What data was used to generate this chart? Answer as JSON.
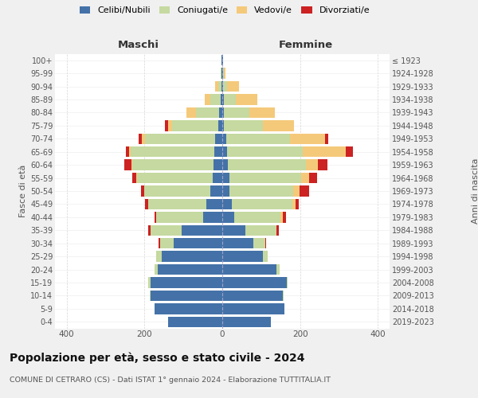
{
  "age_groups": [
    "0-4",
    "5-9",
    "10-14",
    "15-19",
    "20-24",
    "25-29",
    "30-34",
    "35-39",
    "40-44",
    "45-49",
    "50-54",
    "55-59",
    "60-64",
    "65-69",
    "70-74",
    "75-79",
    "80-84",
    "85-89",
    "90-94",
    "95-99",
    "100+"
  ],
  "birth_years": [
    "2019-2023",
    "2014-2018",
    "2009-2013",
    "2004-2008",
    "1999-2003",
    "1994-1998",
    "1989-1993",
    "1984-1988",
    "1979-1983",
    "1974-1978",
    "1969-1973",
    "1964-1968",
    "1959-1963",
    "1954-1958",
    "1949-1953",
    "1944-1948",
    "1939-1943",
    "1934-1938",
    "1929-1933",
    "1924-1928",
    "≤ 1923"
  ],
  "maschi": {
    "celibi": [
      140,
      175,
      185,
      185,
      165,
      155,
      125,
      105,
      50,
      40,
      30,
      25,
      22,
      20,
      18,
      10,
      8,
      5,
      3,
      2,
      2
    ],
    "coniugati": [
      0,
      0,
      2,
      5,
      10,
      15,
      35,
      80,
      120,
      150,
      170,
      195,
      210,
      215,
      180,
      120,
      60,
      25,
      8,
      3,
      1
    ],
    "vedovi": [
      0,
      0,
      0,
      0,
      0,
      0,
      0,
      0,
      0,
      0,
      1,
      2,
      2,
      5,
      8,
      10,
      25,
      15,
      8,
      0,
      0
    ],
    "divorziati": [
      0,
      0,
      0,
      0,
      0,
      0,
      3,
      5,
      5,
      8,
      8,
      10,
      18,
      8,
      8,
      8,
      0,
      0,
      0,
      0,
      0
    ]
  },
  "femmine": {
    "nubili": [
      125,
      160,
      155,
      165,
      140,
      105,
      80,
      60,
      30,
      25,
      18,
      18,
      15,
      12,
      10,
      5,
      5,
      5,
      3,
      2,
      2
    ],
    "coniugate": [
      0,
      0,
      2,
      3,
      8,
      12,
      30,
      80,
      120,
      155,
      165,
      185,
      200,
      195,
      165,
      100,
      65,
      30,
      10,
      2,
      0
    ],
    "vedove": [
      0,
      0,
      0,
      0,
      0,
      0,
      0,
      0,
      5,
      8,
      15,
      20,
      30,
      110,
      90,
      80,
      65,
      55,
      30,
      5,
      1
    ],
    "divorziate": [
      0,
      0,
      0,
      0,
      0,
      0,
      3,
      5,
      8,
      8,
      25,
      20,
      25,
      18,
      8,
      0,
      0,
      0,
      0,
      0,
      0
    ]
  },
  "colors": {
    "celibi": "#4472a8",
    "coniugati": "#c5d9a0",
    "vedovi": "#f5c97a",
    "divorziati": "#cc2222"
  },
  "xlim": 430,
  "title": "Popolazione per età, sesso e stato civile - 2024",
  "subtitle": "COMUNE DI CETRARO (CS) - Dati ISTAT 1° gennaio 2024 - Elaborazione TUTTITALIA.IT",
  "ylabel_left": "Fasce di età",
  "ylabel_right": "Anni di nascita",
  "xlabel_left": "Maschi",
  "xlabel_right": "Femmine",
  "bg_color": "#f0f0f0",
  "plot_bg_color": "#ffffff"
}
